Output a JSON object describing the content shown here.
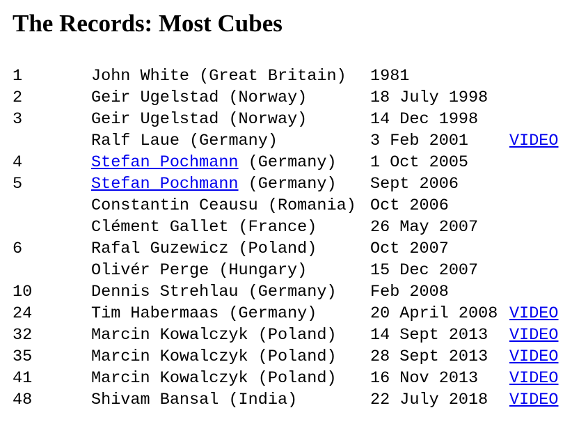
{
  "page": {
    "title": "The Records: Most Cubes"
  },
  "records": [
    {
      "count": "1",
      "name": "John White",
      "country": "(Great Britain)",
      "date": "1981",
      "name_link": false,
      "video": ""
    },
    {
      "count": "2",
      "name": "Geir Ugelstad",
      "country": "(Norway)",
      "date": "18 July 1998",
      "name_link": false,
      "video": ""
    },
    {
      "count": "3",
      "name": "Geir Ugelstad",
      "country": "(Norway)",
      "date": "14 Dec 1998",
      "name_link": false,
      "video": ""
    },
    {
      "count": "",
      "name": "Ralf Laue",
      "country": "(Germany)",
      "date": "3 Feb 2001",
      "name_link": false,
      "video": "VIDEO"
    },
    {
      "count": "4",
      "name": "Stefan Pochmann",
      "country": "(Germany)",
      "date": "1 Oct 2005",
      "name_link": true,
      "video": ""
    },
    {
      "count": "5",
      "name": "Stefan Pochmann",
      "country": "(Germany)",
      "date": "Sept 2006",
      "name_link": true,
      "video": ""
    },
    {
      "count": "",
      "name": "Constantin Ceausu",
      "country": "(Romania)",
      "date": "Oct 2006",
      "name_link": false,
      "video": ""
    },
    {
      "count": "",
      "name": "Clément Gallet",
      "country": "(France)",
      "date": "26 May 2007",
      "name_link": false,
      "video": ""
    },
    {
      "count": "6",
      "name": "Rafal Guzewicz",
      "country": "(Poland)",
      "date": "Oct 2007",
      "name_link": false,
      "video": ""
    },
    {
      "count": "",
      "name": "Olivér Perge",
      "country": "(Hungary)",
      "date": "15 Dec 2007",
      "name_link": false,
      "video": ""
    },
    {
      "count": "10",
      "name": "Dennis Strehlau",
      "country": "(Germany)",
      "date": "Feb 2008",
      "name_link": false,
      "video": ""
    },
    {
      "count": "24",
      "name": "Tim Habermaas",
      "country": "(Germany)",
      "date": "20 April 2008",
      "name_link": false,
      "video": "VIDEO"
    },
    {
      "count": "32",
      "name": "Marcin Kowalczyk",
      "country": "(Poland)",
      "date": "14 Sept 2013",
      "name_link": false,
      "video": "VIDEO"
    },
    {
      "count": "35",
      "name": "Marcin Kowalczyk",
      "country": "(Poland)",
      "date": "28 Sept 2013",
      "name_link": false,
      "video": "VIDEO"
    },
    {
      "count": "41",
      "name": "Marcin Kowalczyk",
      "country": "(Poland)",
      "date": "16 Nov 2013",
      "name_link": false,
      "video": "VIDEO"
    },
    {
      "count": "48",
      "name": "Shivam Bansal",
      "country": "(India)",
      "date": "22 July 2018",
      "name_link": false,
      "video": "VIDEO"
    }
  ],
  "colors": {
    "text": "#000000",
    "link": "#0000ee",
    "background": "#ffffff"
  }
}
